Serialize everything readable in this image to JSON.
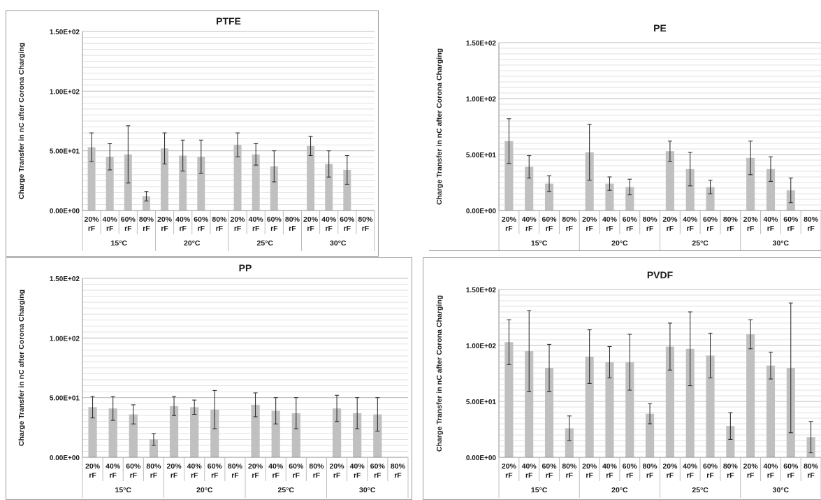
{
  "chart_data": [
    {
      "type": "bar",
      "title": "PTFE",
      "ylabel": "Charge Transfer in nC after Corona Charging",
      "ylim": [
        0,
        150
      ],
      "yticks": [
        {
          "value": 0,
          "label": "0.00E+00"
        },
        {
          "value": 50,
          "label": "5.00E+01"
        },
        {
          "value": 100,
          "label": "1.00E+02"
        },
        {
          "value": 150,
          "label": "1.50E+02"
        }
      ],
      "grid": true,
      "humidity_labels": [
        "20%",
        "40%",
        "60%",
        "80%"
      ],
      "unit_label": "rF",
      "groups": [
        "15°C",
        "20°C",
        "25°C",
        "30°C"
      ],
      "values": [
        53,
        45,
        47,
        12,
        52,
        46,
        45,
        0,
        55,
        47,
        37,
        0,
        54,
        39,
        34,
        0
      ],
      "errors": [
        12,
        11,
        24,
        4,
        13,
        13,
        14,
        0,
        10,
        9,
        13,
        0,
        8,
        11,
        12,
        0
      ],
      "bar_color": "#c0c0c0"
    },
    {
      "type": "bar",
      "title": "PE",
      "ylabel": "Charge Transfer in nC after Corona Charging",
      "ylim": [
        0,
        150
      ],
      "yticks": [
        {
          "value": 0,
          "label": "0.00E+00"
        },
        {
          "value": 50,
          "label": "5.00E+01"
        },
        {
          "value": 100,
          "label": "1.00E+02"
        },
        {
          "value": 150,
          "label": "1.50E+02"
        }
      ],
      "grid": true,
      "humidity_labels": [
        "20%",
        "40%",
        "60%",
        "80%"
      ],
      "unit_label": "rF",
      "groups": [
        "15°C",
        "20°C",
        "25°C",
        "30°C"
      ],
      "values": [
        62,
        39,
        24,
        0,
        52,
        24,
        21,
        0,
        53,
        37,
        21,
        0,
        47,
        37,
        18,
        0
      ],
      "errors": [
        20,
        10,
        7,
        0,
        25,
        6,
        7,
        0,
        9,
        15,
        6,
        0,
        15,
        11,
        11,
        0
      ],
      "bar_color": "#c0c0c0"
    },
    {
      "type": "bar",
      "title": "PP",
      "ylabel": "Charge Transfer in nC after Corona Charging",
      "ylim": [
        0,
        150
      ],
      "yticks": [
        {
          "value": 0,
          "label": "0.00E+00"
        },
        {
          "value": 50,
          "label": "5.00E+01"
        },
        {
          "value": 100,
          "label": "1.00E+02"
        },
        {
          "value": 150,
          "label": "1.50E+02"
        }
      ],
      "grid": true,
      "humidity_labels": [
        "20%",
        "40%",
        "60%",
        "80%"
      ],
      "unit_label": "rF",
      "groups": [
        "15°C",
        "20°C",
        "25°C",
        "30°C"
      ],
      "values": [
        42,
        41,
        36,
        15,
        43,
        42,
        40,
        0,
        44,
        39,
        37,
        0,
        41,
        37,
        36,
        0
      ],
      "errors": [
        9,
        10,
        8,
        5,
        8,
        6,
        16,
        0,
        10,
        11,
        13,
        0,
        11,
        13,
        14,
        0
      ],
      "bar_color": "#c0c0c0"
    },
    {
      "type": "bar",
      "title": "PVDF",
      "ylabel": "Charge Transfer in nC after Corona Charging",
      "ylim": [
        0,
        150
      ],
      "yticks": [
        {
          "value": 0,
          "label": "0.00E+00"
        },
        {
          "value": 50,
          "label": "5.00E+01"
        },
        {
          "value": 100,
          "label": "1.00E+02"
        },
        {
          "value": 150,
          "label": "1.50E+02"
        }
      ],
      "grid": true,
      "humidity_labels": [
        "20%",
        "40%",
        "60%",
        "80%"
      ],
      "unit_label": "rF",
      "groups": [
        "15°C",
        "20°C",
        "25°C",
        "30°C"
      ],
      "values": [
        103,
        95,
        80,
        26,
        90,
        85,
        85,
        39,
        99,
        97,
        91,
        28,
        110,
        82,
        80,
        18
      ],
      "errors": [
        20,
        36,
        21,
        11,
        24,
        14,
        25,
        9,
        21,
        33,
        20,
        12,
        13,
        12,
        58,
        14
      ],
      "bar_color": "#c0c0c0"
    }
  ]
}
